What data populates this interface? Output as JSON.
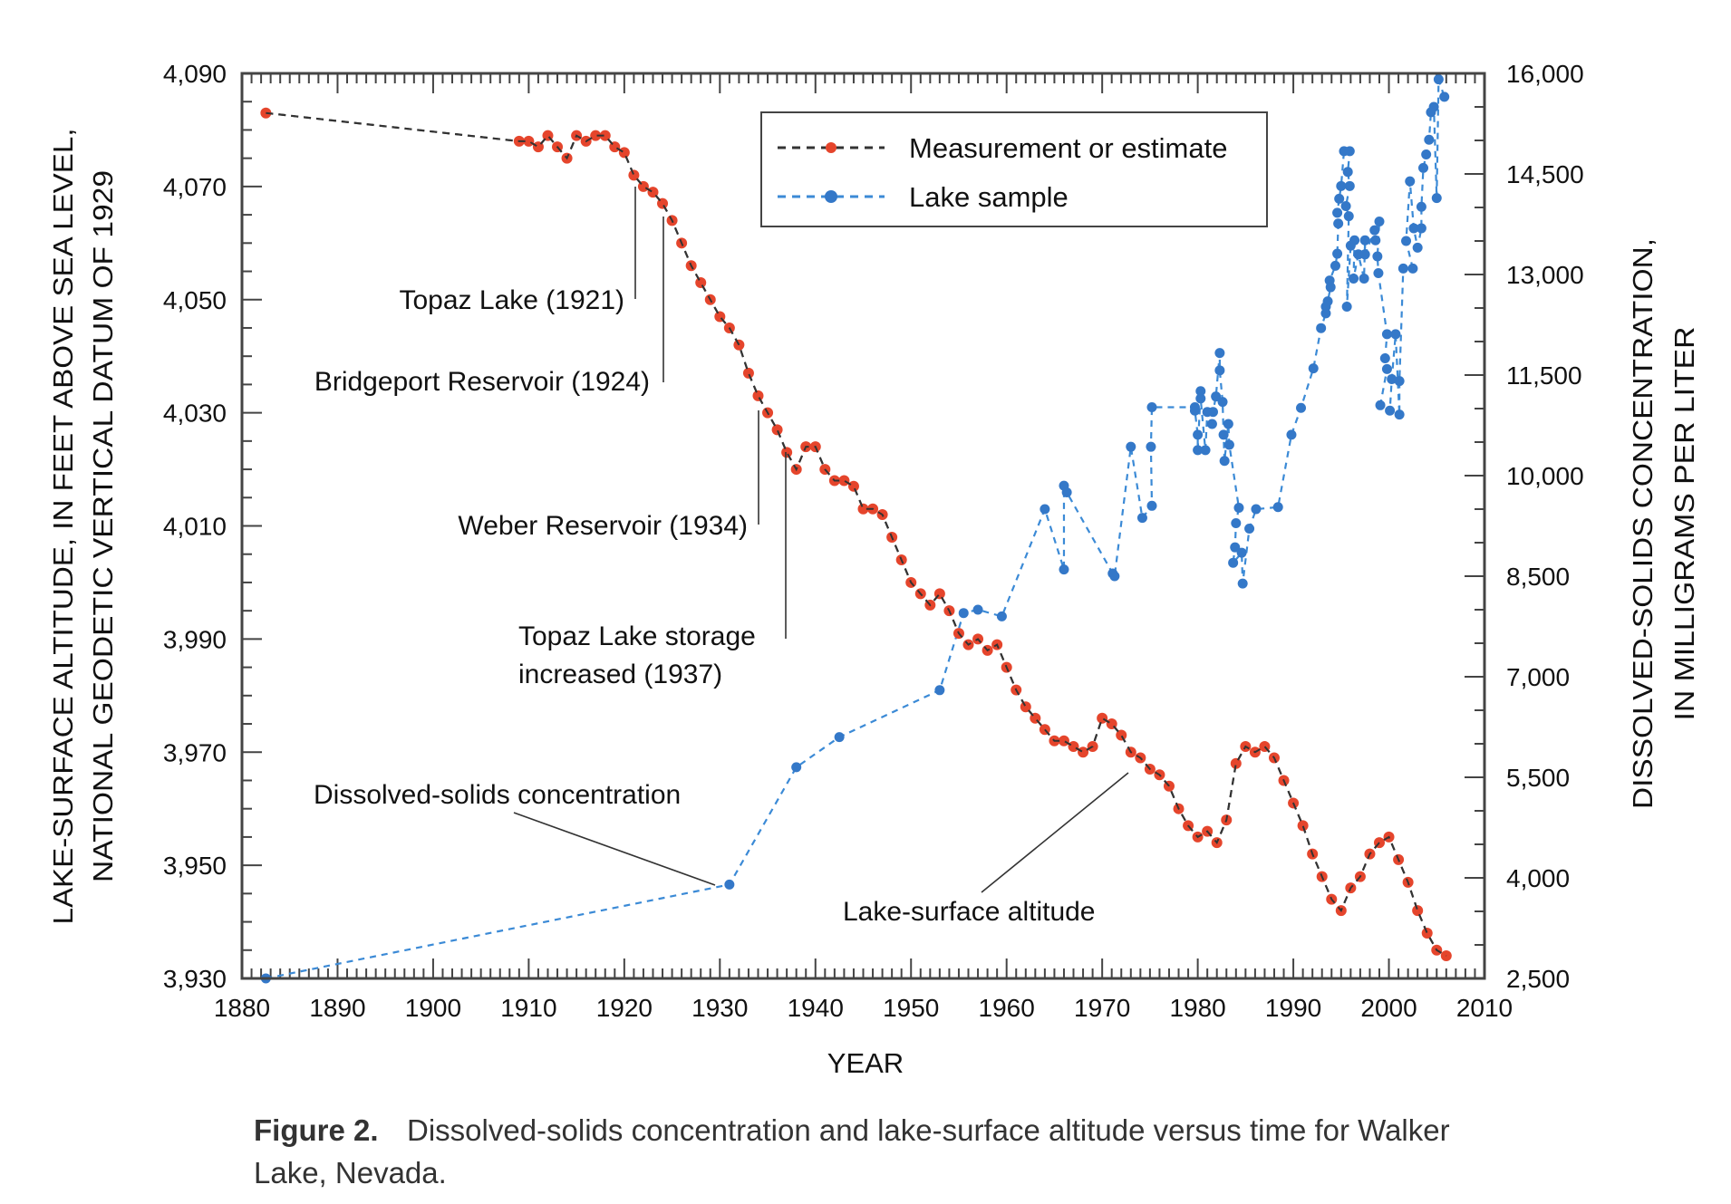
{
  "chart_data": {
    "type": "line",
    "xlabel": "YEAR",
    "ylabel_left": [
      "LAKE-SURFACE ALTITUDE, IN FEET ABOVE SEA LEVEL,",
      "NATIONAL GEODETIC VERTICAL DATUM OF 1929"
    ],
    "ylabel_right": [
      "DISSOLVED-SOLIDS CONCENTRATION,",
      "IN MILLIGRAMS PER LITER"
    ],
    "xlim": [
      1880,
      2010
    ],
    "ylim_left": [
      3930,
      4090
    ],
    "ylim_right": [
      2500,
      16000
    ],
    "x_ticks": [
      "1880",
      "1890",
      "1900",
      "1910",
      "1920",
      "1930",
      "1940",
      "1950",
      "1960",
      "1970",
      "1980",
      "1990",
      "2000",
      "2010"
    ],
    "y_left_ticks": [
      "3,930",
      "3,950",
      "3,970",
      "3,990",
      "4,010",
      "4,030",
      "4,050",
      "4,070",
      "4,090"
    ],
    "y_right_ticks": [
      "2,500",
      "4,000",
      "5,500",
      "7,000",
      "8,500",
      "10,000",
      "11,500",
      "13,000",
      "14,500",
      "16,000"
    ],
    "grid": false,
    "legend_position": "top-right",
    "legend": [
      {
        "label": "Measurement or estimate",
        "line_color": "#333333",
        "marker_color": "#e5452c"
      },
      {
        "label": "Lake sample",
        "line_color": "#3b8ad6",
        "marker_color": "#3478c8"
      }
    ],
    "series": [
      {
        "name": "Measurement or estimate",
        "axis": "left",
        "color": "#e5452c",
        "points": [
          [
            1882.5,
            4083
          ],
          [
            1909,
            4078
          ],
          [
            1910,
            4078
          ],
          [
            1911,
            4077
          ],
          [
            1912,
            4079
          ],
          [
            1913,
            4077
          ],
          [
            1914,
            4075
          ],
          [
            1915,
            4079
          ],
          [
            1916,
            4078
          ],
          [
            1917,
            4079
          ],
          [
            1918,
            4079
          ],
          [
            1919,
            4077
          ],
          [
            1920,
            4076
          ],
          [
            1921,
            4072
          ],
          [
            1922,
            4070
          ],
          [
            1923,
            4069
          ],
          [
            1924,
            4067
          ],
          [
            1925,
            4064
          ],
          [
            1926,
            4060
          ],
          [
            1927,
            4056
          ],
          [
            1928,
            4053
          ],
          [
            1929,
            4050
          ],
          [
            1930,
            4047
          ],
          [
            1931,
            4045
          ],
          [
            1932,
            4042
          ],
          [
            1933,
            4037
          ],
          [
            1934,
            4033
          ],
          [
            1935,
            4030
          ],
          [
            1936,
            4027
          ],
          [
            1937,
            4023
          ],
          [
            1938,
            4020
          ],
          [
            1939,
            4024
          ],
          [
            1940,
            4024
          ],
          [
            1941,
            4020
          ],
          [
            1942,
            4018
          ],
          [
            1943,
            4018
          ],
          [
            1944,
            4017
          ],
          [
            1945,
            4013
          ],
          [
            1946,
            4013
          ],
          [
            1947,
            4012
          ],
          [
            1948,
            4008
          ],
          [
            1949,
            4004
          ],
          [
            1950,
            4000
          ],
          [
            1951,
            3998
          ],
          [
            1952,
            3996
          ],
          [
            1953,
            3998
          ],
          [
            1954,
            3995
          ],
          [
            1955,
            3991
          ],
          [
            1956,
            3989
          ],
          [
            1957,
            3990
          ],
          [
            1958,
            3988
          ],
          [
            1959,
            3989
          ],
          [
            1960,
            3985
          ],
          [
            1961,
            3981
          ],
          [
            1962,
            3978
          ],
          [
            1963,
            3976
          ],
          [
            1964,
            3974
          ],
          [
            1965,
            3972
          ],
          [
            1966,
            3972
          ],
          [
            1967,
            3971
          ],
          [
            1968,
            3970
          ],
          [
            1969,
            3971
          ],
          [
            1970,
            3976
          ],
          [
            1971,
            3975
          ],
          [
            1972,
            3973
          ],
          [
            1973,
            3970
          ],
          [
            1974,
            3969
          ],
          [
            1975,
            3967
          ],
          [
            1976,
            3966
          ],
          [
            1977,
            3964
          ],
          [
            1978,
            3960
          ],
          [
            1979,
            3957
          ],
          [
            1980,
            3955
          ],
          [
            1981,
            3956
          ],
          [
            1982,
            3954
          ],
          [
            1983,
            3958
          ],
          [
            1984,
            3968
          ],
          [
            1985,
            3971
          ],
          [
            1986,
            3970
          ],
          [
            1987,
            3971
          ],
          [
            1988,
            3969
          ],
          [
            1989,
            3965
          ],
          [
            1990,
            3961
          ],
          [
            1991,
            3957
          ],
          [
            1992,
            3952
          ],
          [
            1993,
            3948
          ],
          [
            1994,
            3944
          ],
          [
            1995,
            3942
          ],
          [
            1996,
            3946
          ],
          [
            1997,
            3948
          ],
          [
            1998,
            3952
          ],
          [
            1999,
            3954
          ],
          [
            2000,
            3955
          ],
          [
            2001,
            3951
          ],
          [
            2002,
            3947
          ],
          [
            2003,
            3942
          ],
          [
            2004,
            3938
          ],
          [
            2005,
            3935
          ],
          [
            2006,
            3934
          ]
        ]
      },
      {
        "name": "Lake sample",
        "axis": "right",
        "color": "#3478c8",
        "points": [
          [
            1882.5,
            2500
          ],
          [
            1931,
            3900
          ],
          [
            1938,
            5650
          ],
          [
            1942.5,
            6100
          ],
          [
            1953,
            6800
          ],
          [
            1955.5,
            7950
          ],
          [
            1957,
            8000
          ],
          [
            1959.5,
            7900
          ],
          [
            1964,
            9500
          ],
          [
            1966,
            8600
          ],
          [
            1966,
            9850
          ],
          [
            1966.3,
            9750
          ],
          [
            1971.1,
            8540
          ],
          [
            1971.3,
            8500
          ],
          [
            1973,
            10430
          ],
          [
            1974.2,
            9370
          ],
          [
            1975.2,
            9550
          ],
          [
            1975.1,
            10430
          ],
          [
            1975.2,
            11020
          ],
          [
            1979.7,
            11020
          ],
          [
            1979.7,
            10970
          ],
          [
            1980,
            10610
          ],
          [
            1980,
            10380
          ],
          [
            1980.3,
            11260
          ],
          [
            1980.3,
            11150
          ],
          [
            1980.8,
            10380
          ],
          [
            1981,
            10950
          ],
          [
            1981.5,
            10770
          ],
          [
            1981.6,
            10950
          ],
          [
            1981.9,
            11180
          ],
          [
            1982.3,
            11830
          ],
          [
            1982.3,
            11570
          ],
          [
            1982.6,
            11100
          ],
          [
            1982.7,
            10610
          ],
          [
            1982.8,
            10220
          ],
          [
            1983.2,
            10770
          ],
          [
            1983.3,
            10460
          ],
          [
            1984.3,
            9520
          ],
          [
            1984,
            9290
          ],
          [
            1983.9,
            8930
          ],
          [
            1983.7,
            8700
          ],
          [
            1984.6,
            8850
          ],
          [
            1984.7,
            8390
          ],
          [
            1985.4,
            9210
          ],
          [
            1986.1,
            9500
          ],
          [
            1988.4,
            9530
          ],
          [
            1989.8,
            10610
          ],
          [
            1990.8,
            11010
          ],
          [
            1992.1,
            11600
          ],
          [
            1992.9,
            12200
          ],
          [
            1993.4,
            12420
          ],
          [
            1993.4,
            12520
          ],
          [
            1993.6,
            12600
          ],
          [
            1993.9,
            12810
          ],
          [
            1993.8,
            12910
          ],
          [
            1994.4,
            13130
          ],
          [
            1994.6,
            13310
          ],
          [
            1994.7,
            13760
          ],
          [
            1994.6,
            13920
          ],
          [
            1994.8,
            14130
          ],
          [
            1995,
            14320
          ],
          [
            1995.3,
            14840
          ],
          [
            1995.9,
            14840
          ],
          [
            1995.7,
            14530
          ],
          [
            1995.9,
            14320
          ],
          [
            1995.5,
            14020
          ],
          [
            1995.8,
            13870
          ],
          [
            1995.6,
            12520
          ],
          [
            1996,
            13430
          ],
          [
            1996.4,
            13510
          ],
          [
            1996.3,
            12940
          ],
          [
            1996.8,
            13300
          ],
          [
            1997.4,
            12940
          ],
          [
            1997.5,
            13510
          ],
          [
            1997.5,
            13300
          ],
          [
            1998.5,
            13660
          ],
          [
            1998.6,
            13510
          ],
          [
            1999,
            13790
          ],
          [
            1998.8,
            13270
          ],
          [
            1998.9,
            13020
          ],
          [
            1999.8,
            12110
          ],
          [
            1999.6,
            11750
          ],
          [
            1999.8,
            11590
          ],
          [
            1999.1,
            11050
          ],
          [
            2000.1,
            10970
          ],
          [
            2000.3,
            11440
          ],
          [
            2000.7,
            12110
          ],
          [
            2001.1,
            10910
          ],
          [
            2001.1,
            11410
          ],
          [
            2001.5,
            13090
          ],
          [
            2002.5,
            13090
          ],
          [
            2001.8,
            13500
          ],
          [
            2002.2,
            14390
          ],
          [
            2002.6,
            13690
          ],
          [
            2003,
            13400
          ],
          [
            2003.4,
            13690
          ],
          [
            2003.4,
            14010
          ],
          [
            2003.6,
            14590
          ],
          [
            2003.9,
            14790
          ],
          [
            2004.2,
            15010
          ],
          [
            2004.4,
            15420
          ],
          [
            2004.7,
            15500
          ],
          [
            2005,
            14140
          ],
          [
            2005.2,
            15910
          ],
          [
            2005.8,
            15650
          ]
        ]
      }
    ],
    "annotations": [
      "Topaz Lake (1921)",
      "Bridgeport Reservoir (1924)",
      "Weber Reservoir (1934)",
      "Topaz Lake storage",
      "increased (1937)",
      "Dissolved-solids concentration",
      "Lake-surface altitude"
    ]
  },
  "caption": {
    "label": "Figure 2.",
    "text_lines": [
      "Dissolved-solids concentration and lake-surface altitude versus time for Walker",
      "Lake, Nevada."
    ]
  }
}
